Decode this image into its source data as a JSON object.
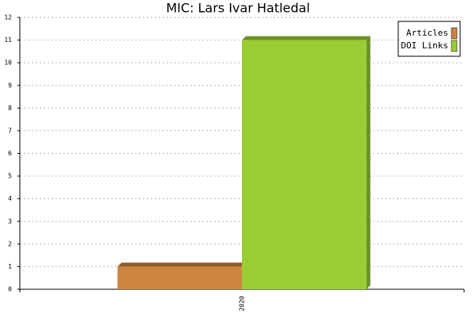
{
  "chart_data": {
    "type": "bar",
    "title": "MIC: Lars Ivar Hatledal",
    "categories": [
      "2020"
    ],
    "series": [
      {
        "name": "Articles",
        "color": "#cd853f",
        "values": [
          1
        ]
      },
      {
        "name": "DOI Links",
        "color": "#9acd32",
        "values": [
          11
        ]
      }
    ],
    "ylim": [
      0,
      12
    ],
    "yticks": [
      0,
      1,
      2,
      3,
      4,
      5,
      6,
      7,
      8,
      9,
      10,
      11,
      12
    ],
    "grid": true,
    "legend": "top-right"
  }
}
